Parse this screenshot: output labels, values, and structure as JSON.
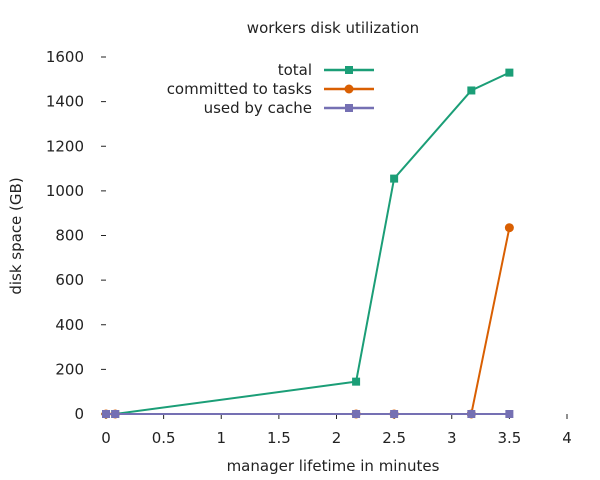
{
  "chart_data": {
    "type": "line",
    "title": "workers disk utilization",
    "xlabel": "manager lifetime in minutes",
    "ylabel": "disk space (GB)",
    "xlim": [
      0,
      4
    ],
    "ylim": [
      0,
      1600
    ],
    "xticks": [
      0,
      0.5,
      1,
      1.5,
      2,
      2.5,
      3,
      3.5,
      4
    ],
    "yticks": [
      0,
      200,
      400,
      600,
      800,
      1000,
      1200,
      1400,
      1600
    ],
    "xtick_labels": [
      "0",
      "0.5",
      "1",
      "1.5",
      "2",
      "2.5",
      "3",
      "3.5",
      "4"
    ],
    "ytick_labels": [
      "0",
      "200",
      "400",
      "600",
      "800",
      "1000",
      "1200",
      "1400",
      "1600"
    ],
    "grid": false,
    "legend_position": "top-right",
    "series": [
      {
        "name": "total",
        "color": "#1b9e77",
        "marker": "square",
        "x": [
          0,
          0.08,
          2.17,
          2.5,
          3.17,
          3.5
        ],
        "y": [
          0,
          0,
          145,
          1055,
          1450,
          1530
        ]
      },
      {
        "name": "committed to tasks",
        "color": "#d95f02",
        "marker": "circle",
        "x": [
          0,
          0.08,
          2.17,
          2.5,
          3.17,
          3.5
        ],
        "y": [
          0,
          0,
          0,
          0,
          0,
          835
        ]
      },
      {
        "name": "used by cache",
        "color": "#7570b3",
        "marker": "square",
        "x": [
          0,
          0.08,
          2.17,
          2.5,
          3.17,
          3.5
        ],
        "y": [
          0,
          0,
          0,
          0,
          0,
          0
        ]
      }
    ]
  }
}
